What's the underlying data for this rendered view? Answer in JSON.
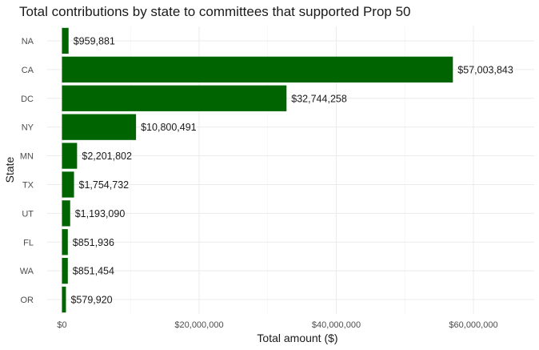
{
  "chart_data": {
    "type": "bar",
    "orientation": "horizontal",
    "title": "Total contributions by state to committees that supported Prop 50",
    "xlabel": "Total amount ($)",
    "ylabel": "State",
    "categories": [
      "NA",
      "CA",
      "DC",
      "NY",
      "MN",
      "TX",
      "UT",
      "FL",
      "WA",
      "OR"
    ],
    "values": [
      959881,
      57003843,
      32744258,
      10800491,
      2201802,
      1754732,
      1193090,
      851936,
      851454,
      579920
    ],
    "value_labels": [
      "$959,881",
      "$57,003,843",
      "$32,744,258",
      "$10,800,491",
      "$2,201,802",
      "$1,754,732",
      "$1,193,090",
      "$851,936",
      "$851,454",
      "$579,920"
    ],
    "xlim": [
      0,
      68000000
    ],
    "x_ticks": [
      0,
      20000000,
      40000000,
      60000000
    ],
    "x_tick_labels": [
      "$0",
      "$20,000,000",
      "$40,000,000",
      "$60,000,000"
    ],
    "grid": true,
    "bar_color": "#006400"
  }
}
